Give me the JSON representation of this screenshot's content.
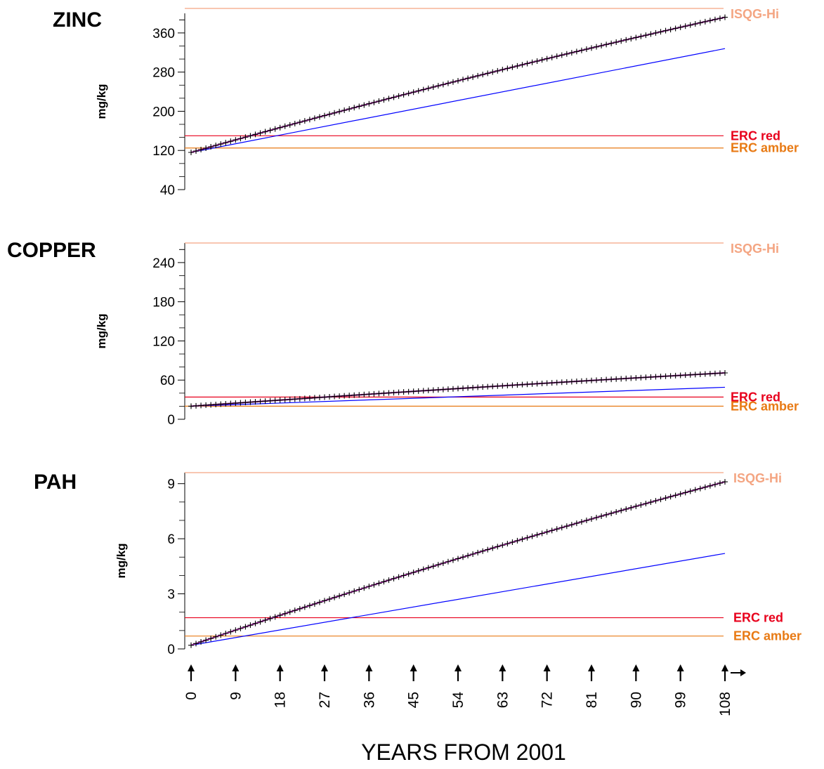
{
  "chart_data": [
    {
      "type": "line",
      "title": "ZINC",
      "ylabel": "mg/kg",
      "ylim": [
        40,
        400
      ],
      "yticks": [
        40,
        120,
        200,
        280,
        360
      ],
      "x": [
        0,
        108
      ],
      "series": [
        {
          "values": [
            116,
            392
          ],
          "color": "#9B2C9B",
          "marker": "plus"
        },
        {
          "values": [
            116,
            328
          ],
          "color": "#0000FF"
        }
      ],
      "reference_lines": [
        {
          "name": "ISQG-Hi",
          "value": 410,
          "color": "#F4A582"
        },
        {
          "name": "ERC red",
          "value": 150,
          "color": "#E8001C"
        },
        {
          "name": "ERC amber",
          "value": 125,
          "color": "#E87A14"
        }
      ]
    },
    {
      "type": "line",
      "title": "COPPER",
      "ylabel": "mg/kg",
      "ylim": [
        0,
        270
      ],
      "yticks": [
        0,
        60,
        120,
        180,
        240
      ],
      "x": [
        0,
        108
      ],
      "series": [
        {
          "values": [
            20,
            71
          ],
          "color": "#9B2C9B",
          "marker": "plus"
        },
        {
          "values": [
            20,
            49
          ],
          "color": "#0000FF"
        }
      ],
      "reference_lines": [
        {
          "name": "ISQG-Hi",
          "value": 270,
          "color": "#F4A582"
        },
        {
          "name": "ERC red",
          "value": 34,
          "color": "#E8001C"
        },
        {
          "name": "ERC amber",
          "value": 20,
          "color": "#E87A14"
        }
      ]
    },
    {
      "type": "line",
      "title": "PAH",
      "ylabel": "mg/kg",
      "ylim": [
        0,
        9.6
      ],
      "yticks": [
        0,
        3,
        6,
        9
      ],
      "x": [
        0,
        108
      ],
      "series": [
        {
          "values": [
            0.2,
            9.1
          ],
          "color": "#9B2C9B",
          "marker": "plus"
        },
        {
          "values": [
            0.2,
            5.2
          ],
          "color": "#0000FF"
        }
      ],
      "reference_lines": [
        {
          "name": "ISQG-Hi",
          "value": 9.6,
          "color": "#F4A582"
        },
        {
          "name": "ERC red",
          "value": 1.7,
          "color": "#E8001C"
        },
        {
          "name": "ERC amber",
          "value": 0.7,
          "color": "#E87A14"
        }
      ]
    }
  ],
  "x_axis": {
    "title": "YEARS FROM 2001",
    "ticks": [
      "0",
      "9",
      "18",
      "27",
      "36",
      "45",
      "54",
      "63",
      "72",
      "81",
      "90",
      "99",
      "108"
    ],
    "tick_icon": "up-arrow-icon",
    "range": [
      0,
      108
    ]
  }
}
